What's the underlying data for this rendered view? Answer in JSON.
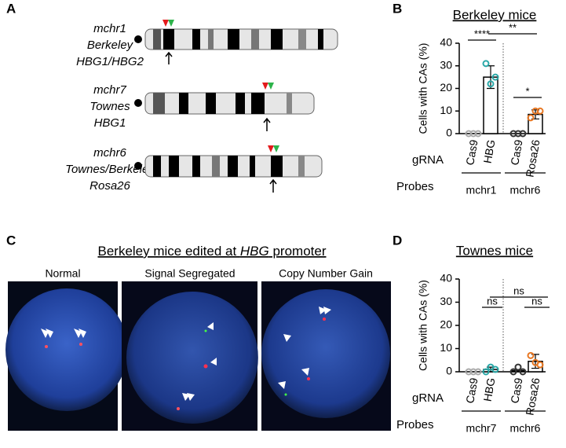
{
  "panel_labels": [
    "A",
    "B",
    "C",
    "D"
  ],
  "chromosomes": [
    [
      "mchr1",
      "Berkeley",
      "HBG1/HBG2"
    ],
    [
      "mchr7",
      "Townes",
      "HBG1"
    ],
    [
      "mchr6",
      "Townes/Berkeley",
      "Rosa26"
    ]
  ],
  "panel_c": {
    "title": [
      "Berkeley mice edited at ",
      "HBG",
      " promoter"
    ],
    "captions": [
      "Normal",
      "Signal Segregated",
      "Copy Number Gain"
    ]
  },
  "chart_data": [
    {
      "type": "bar",
      "title": "Berkeley mice",
      "ylabel": "Cells with CAs (%)",
      "categories": [
        "Cas9",
        "HBG",
        "Cas9",
        "Rosa26"
      ],
      "values": [
        0,
        25,
        0,
        8.5
      ],
      "errors": [
        0,
        5,
        0,
        2
      ],
      "points": [
        [
          0,
          0,
          0
        ],
        [
          31,
          22,
          25
        ],
        [
          0,
          0,
          0
        ],
        [
          7,
          10,
          10
        ]
      ],
      "point_colors": [
        "#aaaaaa",
        "#2aa8a8",
        "#333333",
        "#e87722"
      ],
      "ylim": [
        0,
        40
      ],
      "yticks": [
        0,
        10,
        20,
        30,
        40
      ],
      "row_labels": [
        "gRNA",
        "Probes"
      ],
      "probe_groups": [
        "mchr1",
        "mchr6"
      ],
      "annotations": [
        "****",
        "**",
        "*"
      ]
    },
    {
      "type": "bar",
      "title": "Townes mice",
      "ylabel": "Cells with CAs (%)",
      "categories": [
        "Cas9",
        "HBG",
        "Cas9",
        "Rosa26"
      ],
      "values": [
        0,
        1,
        0.5,
        4.5
      ],
      "errors": [
        0,
        1,
        0,
        3
      ],
      "points": [
        [
          0,
          0,
          0
        ],
        [
          0,
          2,
          1
        ],
        [
          0,
          2,
          0
        ],
        [
          7,
          4,
          3
        ]
      ],
      "point_colors": [
        "#aaaaaa",
        "#2aa8a8",
        "#333333",
        "#e87722"
      ],
      "ylim": [
        0,
        40
      ],
      "yticks": [
        0,
        10,
        20,
        30,
        40
      ],
      "row_labels": [
        "gRNA",
        "Probes"
      ],
      "probe_groups": [
        "mchr7",
        "mchr6"
      ],
      "annotations": [
        "ns",
        "ns",
        "ns"
      ]
    }
  ]
}
